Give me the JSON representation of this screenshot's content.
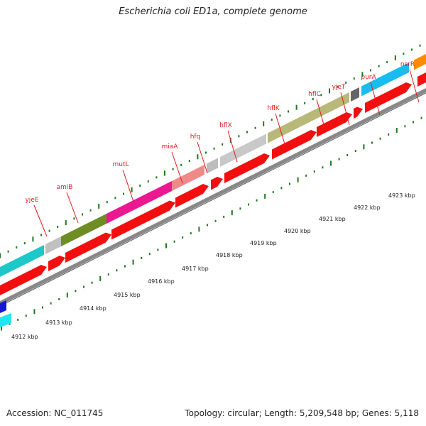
{
  "title": "Escherichia coli ED1a, complete genome",
  "accession": "Accession: NC_011745",
  "summary": "Topology: circular; Length: 5,209,548 bp; Genes: 5,118",
  "colors": {
    "cds_red": "#f20f0f",
    "backbone": "#888888",
    "tick_green": "#1d7a1d",
    "label_red": "#e8191c"
  },
  "gene_labels": [
    "yjeE",
    "amiB",
    "mutL",
    "miaA",
    "hfq",
    "hflX",
    "hflK",
    "hflC",
    "yjeT",
    "purA",
    "nsrR"
  ],
  "kbp_labels": [
    "4912 kbp",
    "4913 kbp",
    "4914 kbp",
    "4915 kbp",
    "4916 kbp",
    "4917 kbp",
    "4918 kbp",
    "4919 kbp",
    "4920 kbp",
    "4921 kbp",
    "4922 kbp",
    "4923 kbp"
  ]
}
